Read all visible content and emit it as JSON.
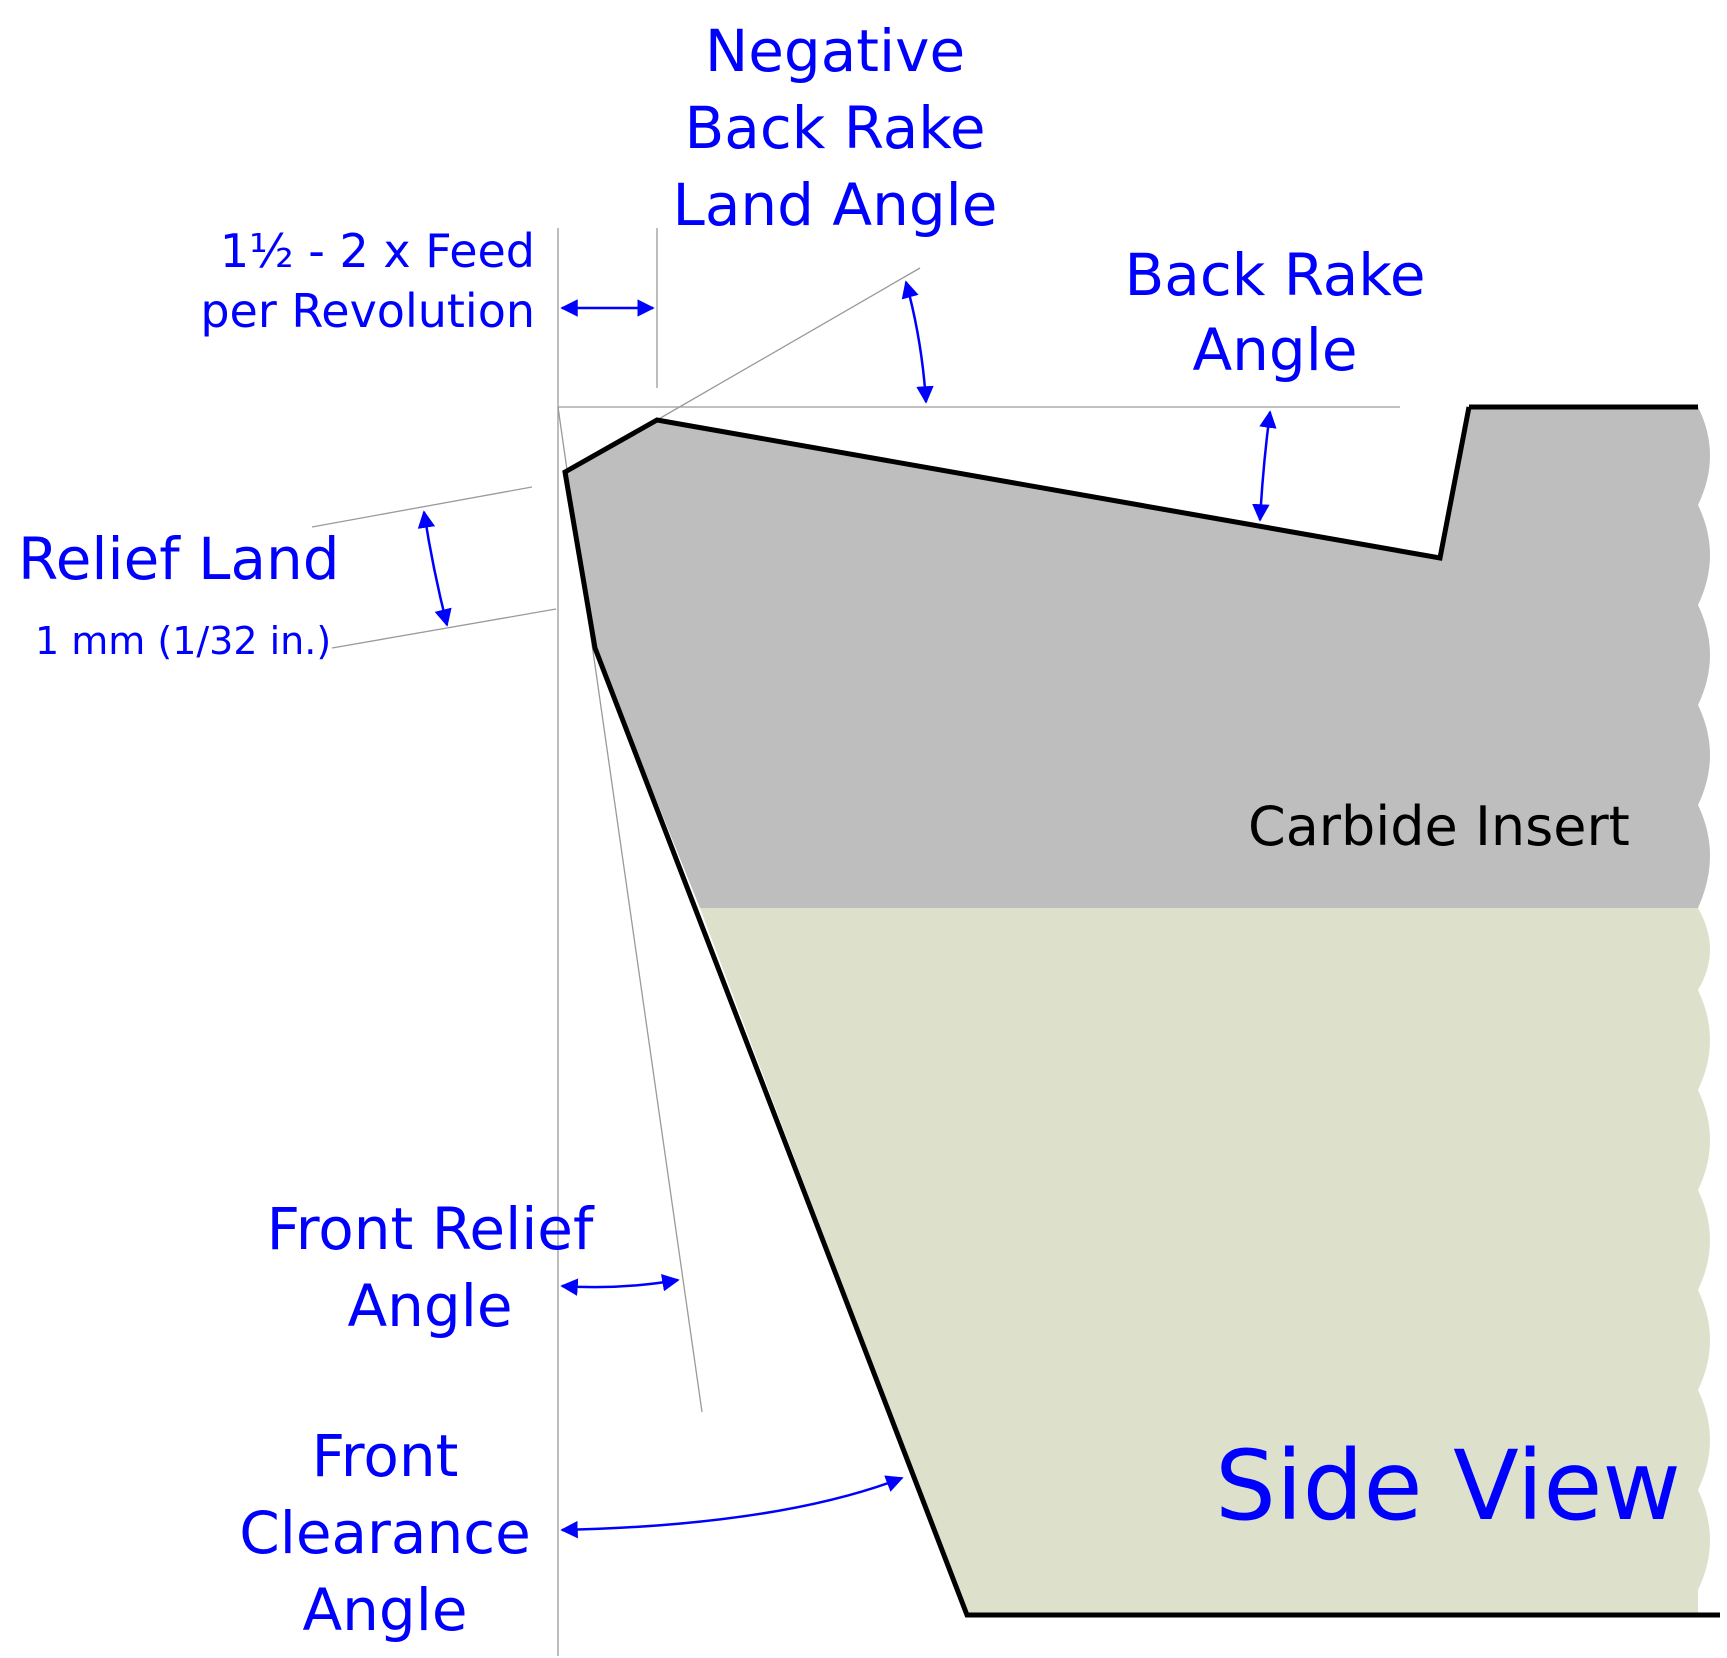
{
  "labels": {
    "negative_back_rake": [
      "Negative",
      "Back Rake",
      "Land Angle"
    ],
    "feed": [
      "1½ - 2 x Feed",
      "per Revolution"
    ],
    "back_rake": [
      "Back Rake",
      "Angle"
    ],
    "relief_land": "Relief Land",
    "relief_land_dim": "1 mm (1/32 in.)",
    "front_relief": [
      "Front Relief",
      "Angle"
    ],
    "front_clearance": [
      "Front",
      "Clearance",
      "Angle"
    ],
    "carbide_insert": "Carbide Insert",
    "view": "Side View"
  },
  "colors": {
    "label": "#0000ff",
    "outline": "#000000",
    "insert_fill": "#bebebe",
    "holder_fill": "#dde1cc",
    "guide_line": "#9a9a9a",
    "arrow": "#0000ff"
  }
}
